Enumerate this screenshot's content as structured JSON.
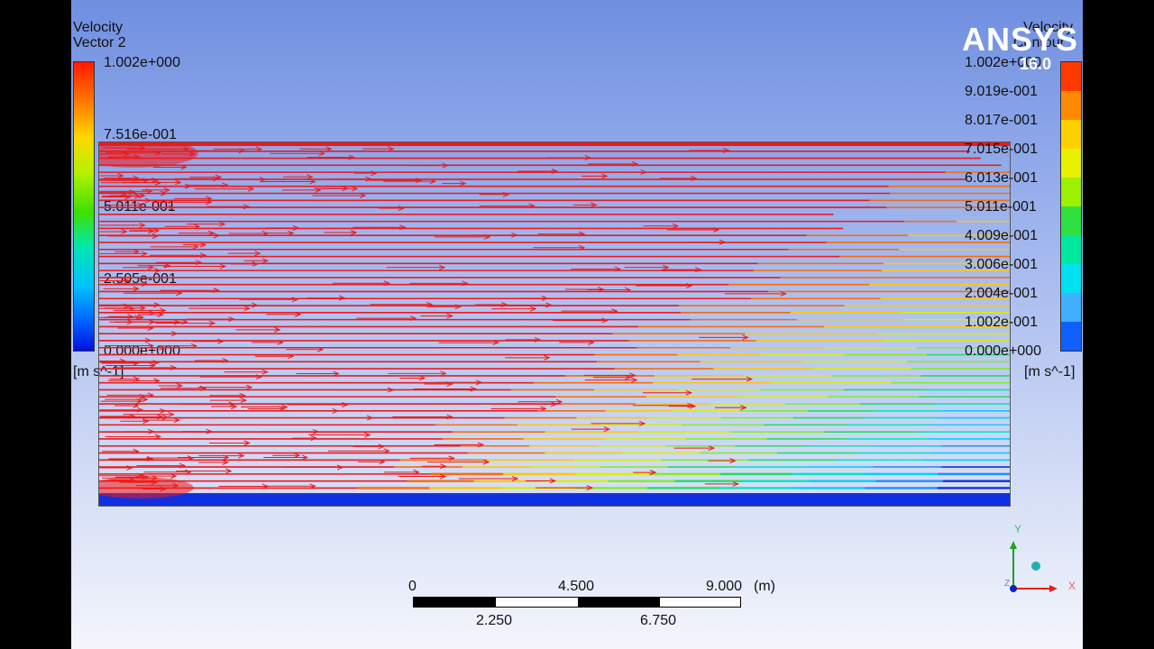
{
  "logo": {
    "brand": "ANSYS",
    "version": "16.0"
  },
  "legend_left": {
    "title_line1": "Velocity",
    "title_line2": "Vector 2",
    "ticks": [
      "1.002e+000",
      "7.516e-001",
      "5.011e-001",
      "2.505e-001",
      "0.000e+000"
    ],
    "unit": "[m s^-1]"
  },
  "legend_right": {
    "title_line1": "Velocity",
    "title_line2": "Contour 1",
    "ticks": [
      "1.002e+000",
      "9.019e-001",
      "8.017e-001",
      "7.015e-001",
      "6.013e-001",
      "5.011e-001",
      "4.009e-001",
      "3.006e-001",
      "2.004e-001",
      "1.002e-001",
      "0.000e+000"
    ],
    "unit": "[m s^-1]",
    "band_colors": [
      "#ff3a00",
      "#ff8a00",
      "#ffd000",
      "#e8f000",
      "#9cf000",
      "#30e040",
      "#00e8a0",
      "#00e0f0",
      "#40b0ff",
      "#1060ff"
    ]
  },
  "scale": {
    "labels_top": [
      "0",
      "4.500",
      "9.000"
    ],
    "unit": "(m)",
    "labels_bottom": [
      "2.250",
      "6.750"
    ]
  },
  "axes": {
    "x": "X",
    "y": "Y",
    "z": "Z"
  },
  "colors": {
    "vector": "#f01818",
    "background_top": "#6f8fe0",
    "background_bottom": "#f4f6fc"
  }
}
